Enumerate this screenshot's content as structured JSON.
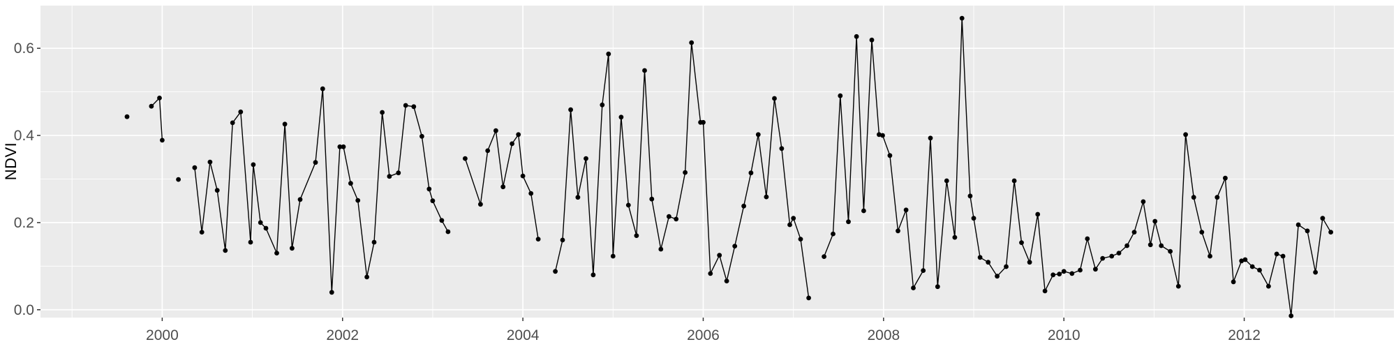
{
  "figure": {
    "background": "#FFFFFF",
    "panel_background": "#EBEBEB",
    "grid_color": "#FFFFFF",
    "series_color": "#000000",
    "axis_text_color": "#4D4D4D",
    "axis_title_color": "#000000",
    "tick_mark_color": "#333333"
  },
  "chart_data": {
    "type": "line",
    "title": "",
    "xlabel": "",
    "ylabel": "NDVI",
    "legend": false,
    "grid": true,
    "markers": true,
    "xlim": [
      1998.65,
      2013.66
    ],
    "ylim": [
      -0.018,
      0.698
    ],
    "x_ticks": [
      2000,
      2002,
      2004,
      2006,
      2008,
      2010,
      2012
    ],
    "x_tick_labels": [
      "2000",
      "2002",
      "2004",
      "2006",
      "2008",
      "2010",
      "2012"
    ],
    "x_minor_ticks": [
      1999,
      2001,
      2003,
      2005,
      2007,
      2009,
      2011,
      2013
    ],
    "y_ticks": [
      0.0,
      0.2,
      0.4,
      0.6
    ],
    "y_tick_labels": [
      "0.0",
      "0.2",
      "0.4",
      "0.6"
    ],
    "y_minor_ticks": [
      0.1,
      0.3,
      0.5
    ],
    "series_name": "NDVI",
    "segments": [
      [
        [
          1999.61,
          0.443
        ]
      ],
      [
        [
          1999.88,
          0.467
        ],
        [
          1999.97,
          0.486
        ],
        [
          2000.0,
          0.389
        ]
      ],
      [
        [
          2000.18,
          0.299
        ]
      ],
      [
        [
          2000.36,
          0.326
        ],
        [
          2000.44,
          0.178
        ],
        [
          2000.53,
          0.339
        ],
        [
          2000.61,
          0.274
        ],
        [
          2000.7,
          0.136
        ],
        [
          2000.78,
          0.429
        ],
        [
          2000.87,
          0.454
        ],
        [
          2000.98,
          0.155
        ],
        [
          2001.01,
          0.333
        ],
        [
          2001.09,
          0.2
        ],
        [
          2001.15,
          0.187
        ],
        [
          2001.27,
          0.13
        ],
        [
          2001.36,
          0.426
        ],
        [
          2001.44,
          0.141
        ],
        [
          2001.53,
          0.253
        ],
        [
          2001.7,
          0.338
        ],
        [
          2001.78,
          0.507
        ],
        [
          2001.88,
          0.04
        ],
        [
          2001.97,
          0.374
        ],
        [
          2002.01,
          0.374
        ],
        [
          2002.09,
          0.29
        ],
        [
          2002.17,
          0.251
        ],
        [
          2002.27,
          0.075
        ],
        [
          2002.35,
          0.155
        ],
        [
          2002.44,
          0.453
        ],
        [
          2002.52,
          0.306
        ],
        [
          2002.62,
          0.314
        ],
        [
          2002.7,
          0.469
        ],
        [
          2002.79,
          0.466
        ],
        [
          2002.88,
          0.398
        ],
        [
          2002.96,
          0.277
        ],
        [
          2003.0,
          0.25
        ],
        [
          2003.1,
          0.205
        ],
        [
          2003.17,
          0.179
        ]
      ],
      [
        [
          2003.36,
          0.347
        ],
        [
          2003.53,
          0.242
        ],
        [
          2003.61,
          0.365
        ],
        [
          2003.7,
          0.411
        ],
        [
          2003.78,
          0.282
        ],
        [
          2003.88,
          0.381
        ],
        [
          2003.95,
          0.402
        ],
        [
          2004.0,
          0.307
        ],
        [
          2004.09,
          0.267
        ],
        [
          2004.17,
          0.162
        ]
      ],
      [
        [
          2004.36,
          0.088
        ],
        [
          2004.44,
          0.16
        ],
        [
          2004.53,
          0.459
        ],
        [
          2004.61,
          0.258
        ],
        [
          2004.7,
          0.347
        ],
        [
          2004.78,
          0.08
        ],
        [
          2004.88,
          0.47
        ],
        [
          2004.95,
          0.587
        ],
        [
          2005.0,
          0.123
        ],
        [
          2005.09,
          0.442
        ],
        [
          2005.17,
          0.24
        ],
        [
          2005.26,
          0.17
        ],
        [
          2005.35,
          0.549
        ],
        [
          2005.43,
          0.254
        ],
        [
          2005.53,
          0.139
        ],
        [
          2005.62,
          0.214
        ],
        [
          2005.7,
          0.208
        ],
        [
          2005.8,
          0.315
        ],
        [
          2005.87,
          0.613
        ],
        [
          2005.97,
          0.43
        ],
        [
          2006.0,
          0.43
        ],
        [
          2006.08,
          0.083
        ],
        [
          2006.18,
          0.125
        ],
        [
          2006.26,
          0.066
        ],
        [
          2006.35,
          0.146
        ],
        [
          2006.45,
          0.238
        ],
        [
          2006.53,
          0.314
        ],
        [
          2006.61,
          0.402
        ],
        [
          2006.7,
          0.259
        ],
        [
          2006.79,
          0.485
        ],
        [
          2006.87,
          0.37
        ],
        [
          2006.96,
          0.195
        ],
        [
          2007.0,
          0.21
        ],
        [
          2007.08,
          0.162
        ],
        [
          2007.17,
          0.027
        ]
      ],
      [
        [
          2007.34,
          0.122
        ],
        [
          2007.44,
          0.174
        ],
        [
          2007.52,
          0.491
        ],
        [
          2007.61,
          0.202
        ],
        [
          2007.7,
          0.627
        ],
        [
          2007.78,
          0.227
        ],
        [
          2007.87,
          0.619
        ],
        [
          2007.95,
          0.402
        ],
        [
          2007.99,
          0.4
        ],
        [
          2008.07,
          0.354
        ],
        [
          2008.16,
          0.181
        ],
        [
          2008.25,
          0.229
        ],
        [
          2008.33,
          0.05
        ],
        [
          2008.44,
          0.09
        ],
        [
          2008.52,
          0.394
        ],
        [
          2008.6,
          0.053
        ],
        [
          2008.7,
          0.296
        ],
        [
          2008.79,
          0.166
        ],
        [
          2008.87,
          0.669
        ],
        [
          2008.96,
          0.261
        ],
        [
          2009.0,
          0.21
        ],
        [
          2009.07,
          0.12
        ],
        [
          2009.16,
          0.109
        ],
        [
          2009.26,
          0.077
        ],
        [
          2009.36,
          0.099
        ],
        [
          2009.45,
          0.296
        ],
        [
          2009.53,
          0.154
        ],
        [
          2009.62,
          0.109
        ],
        [
          2009.71,
          0.219
        ],
        [
          2009.79,
          0.043
        ],
        [
          2009.88,
          0.08
        ],
        [
          2009.95,
          0.082
        ],
        [
          2010.0,
          0.088
        ],
        [
          2010.09,
          0.083
        ],
        [
          2010.18,
          0.091
        ],
        [
          2010.26,
          0.163
        ],
        [
          2010.35,
          0.093
        ],
        [
          2010.43,
          0.118
        ],
        [
          2010.53,
          0.123
        ],
        [
          2010.61,
          0.13
        ],
        [
          2010.7,
          0.147
        ],
        [
          2010.78,
          0.178
        ],
        [
          2010.88,
          0.248
        ],
        [
          2010.96,
          0.149
        ],
        [
          2011.01,
          0.203
        ],
        [
          2011.08,
          0.147
        ],
        [
          2011.18,
          0.134
        ],
        [
          2011.27,
          0.054
        ],
        [
          2011.35,
          0.402
        ],
        [
          2011.44,
          0.258
        ],
        [
          2011.53,
          0.178
        ],
        [
          2011.62,
          0.123
        ],
        [
          2011.7,
          0.258
        ],
        [
          2011.79,
          0.302
        ],
        [
          2011.88,
          0.064
        ],
        [
          2011.97,
          0.112
        ],
        [
          2012.01,
          0.115
        ],
        [
          2012.09,
          0.099
        ],
        [
          2012.17,
          0.091
        ],
        [
          2012.27,
          0.054
        ],
        [
          2012.36,
          0.128
        ],
        [
          2012.43,
          0.123
        ],
        [
          2012.52,
          -0.014
        ],
        [
          2012.6,
          0.195
        ],
        [
          2012.7,
          0.181
        ],
        [
          2012.79,
          0.086
        ],
        [
          2012.87,
          0.21
        ],
        [
          2012.96,
          0.178
        ]
      ]
    ]
  }
}
